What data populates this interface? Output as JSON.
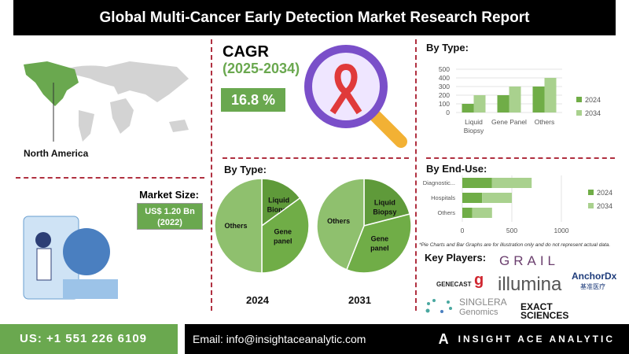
{
  "title": "Global Multi-Cancer Early Detection Market  Research Report",
  "region": "North America",
  "cagr": {
    "label": "CAGR",
    "years": "(2025-2034)",
    "value": "16.8 %"
  },
  "market_size": {
    "label": "Market Size:",
    "value": "US$ 1.20 Bn",
    "year": "(2022)"
  },
  "key_players": {
    "label": "Key Players:",
    "names": [
      "GRAIL",
      "GENECAST",
      "illumina",
      "AnchorDx",
      "基准医疗",
      "SINGLERA",
      "Genomics",
      "EXACT",
      "SCIENCES"
    ]
  },
  "footer": {
    "phone": "US: +1 551 226 6109",
    "email": "Email: info@insightaceanalytic.com",
    "brand": "INSIGHT ACE ANALYTIC"
  },
  "disclaimer": "*Pie Charts and Bar Graphs are for illustration only and do not represent actual data.",
  "chart_data": [
    {
      "type": "pie",
      "title": "By Type:",
      "caption": "2024",
      "labels": [
        "Liquid Biopsy",
        "Gene panel",
        "Others"
      ],
      "values": [
        15,
        35,
        50
      ]
    },
    {
      "type": "pie",
      "title": "By Type:",
      "caption": "2031",
      "labels": [
        "Liquid Biopsy",
        "Gene panel",
        "Others"
      ],
      "values": [
        21,
        35,
        44
      ]
    },
    {
      "type": "bar",
      "title": "By Type:",
      "categories": [
        "Liquid Biopsy",
        "Gene Panel",
        "Others"
      ],
      "series": [
        {
          "name": "2024",
          "values": [
            100,
            200,
            300
          ]
        },
        {
          "name": "2034",
          "values": [
            200,
            300,
            400
          ]
        }
      ],
      "ylim": [
        0,
        500
      ],
      "yticks": [
        "0",
        "100",
        "200",
        "300",
        "400",
        "500"
      ]
    },
    {
      "type": "bar",
      "orientation": "horizontal",
      "stacked": true,
      "title": "By End-Use:",
      "categories": [
        "Diagnostic...",
        "Hospitals",
        "Others"
      ],
      "series": [
        {
          "name": "2024",
          "values": [
            300,
            200,
            100
          ]
        },
        {
          "name": "2034",
          "values": [
            400,
            300,
            200
          ]
        }
      ],
      "xlim": [
        0,
        1000
      ],
      "xticks": [
        "0",
        "500",
        "1000"
      ]
    }
  ],
  "colors": {
    "dark": "#5f9a3a",
    "mid": "#70ad47",
    "light": "#a9d18e",
    "pie_light": "#8fc06e"
  }
}
